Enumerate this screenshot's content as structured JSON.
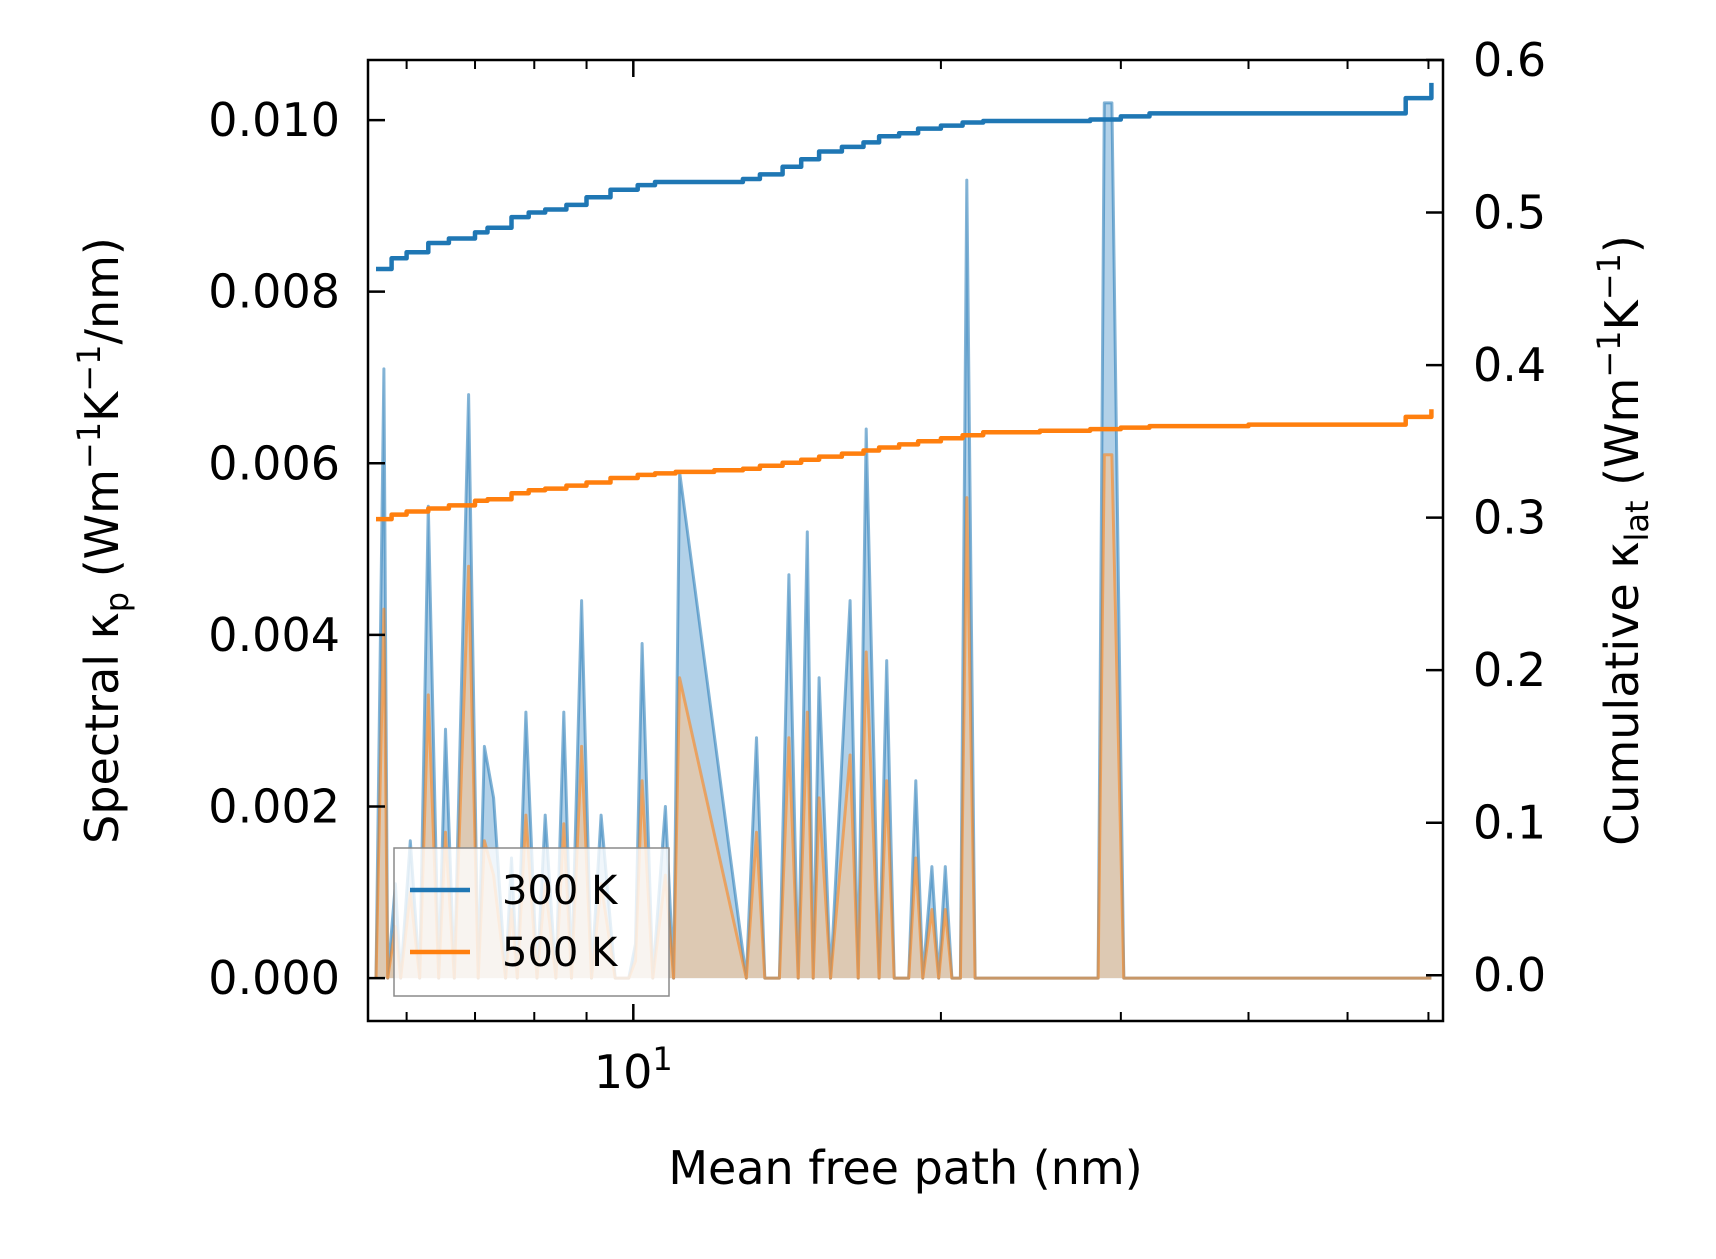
{
  "chart_data": {
    "type": "line",
    "title": "",
    "xlabel": "Mean free path (nm)",
    "x_scale": "log",
    "xlim": [
      5.5,
      62
    ],
    "x_major_ticks": [
      {
        "value": 10,
        "base": "10",
        "exp": "1"
      }
    ],
    "x_minor_ticks": [
      6,
      7,
      8,
      9,
      20,
      30,
      40,
      50,
      60
    ],
    "y_left": {
      "label_parts": {
        "pre": "Spectral κ",
        "sub": "p",
        "mid": " (Wm",
        "sup1": "−1",
        "k": "K",
        "sup2": "−1",
        "post": "/nm)"
      },
      "ylim": [
        -0.0005,
        0.0107
      ],
      "ticks": [
        0.0,
        0.002,
        0.004,
        0.006,
        0.008,
        0.01
      ],
      "tick_labels": [
        "0.000",
        "0.002",
        "0.004",
        "0.006",
        "0.008",
        "0.010"
      ]
    },
    "y_right": {
      "label_parts": {
        "pre": "Cumulative κ",
        "sub": "lat",
        "mid": " (Wm",
        "sup1": "−1",
        "k": "K",
        "sup2": "−1",
        "post": ")"
      },
      "ylim": [
        -0.03,
        0.6
      ],
      "ticks": [
        0.0,
        0.1,
        0.2,
        0.3,
        0.4,
        0.5,
        0.6
      ],
      "tick_labels": [
        "0.0",
        "0.1",
        "0.2",
        "0.3",
        "0.4",
        "0.5",
        "0.6"
      ]
    },
    "legend": {
      "location": "lower-left",
      "entries": [
        "300 K",
        "500 K"
      ]
    },
    "colors": {
      "300K": "#1f77b4",
      "500K": "#ff7f0e",
      "fill_300K": "#89b8dc",
      "fill_500K": "#f5c497"
    },
    "spectral_300K": {
      "x": [
        5.6,
        5.7,
        5.75,
        5.85,
        5.92,
        6.05,
        6.18,
        6.3,
        6.45,
        6.55,
        6.68,
        6.9,
        7.05,
        7.15,
        7.3,
        7.5,
        7.6,
        7.7,
        7.85,
        8.05,
        8.2,
        8.4,
        8.55,
        8.7,
        8.9,
        9.1,
        9.3,
        9.6,
        9.9,
        10.05,
        10.2,
        10.45,
        10.75,
        10.95,
        11.1,
        12.9,
        13.2,
        13.45,
        13.9,
        14.2,
        14.5,
        14.8,
        15.0,
        15.2,
        15.6,
        16.3,
        16.6,
        16.9,
        17.4,
        17.7,
        18.0,
        18.6,
        18.9,
        19.2,
        19.6,
        19.9,
        20.2,
        20.5,
        20.9,
        21.2,
        21.6,
        28.5,
        28.9,
        29.4,
        30.2,
        30.6,
        31.0,
        31.5,
        31.9,
        56.0,
        56.5,
        57.0,
        57.5,
        59.5,
        59.9,
        60.4
      ],
      "y": [
        0,
        0.0071,
        0,
        0.0011,
        0,
        0.0016,
        0,
        0.0055,
        0,
        0.0029,
        0,
        0.0068,
        0,
        0.0027,
        0.0021,
        0,
        0.0014,
        0,
        0.0031,
        0,
        0.0019,
        0,
        0.0031,
        0,
        0.0044,
        0,
        0.0019,
        0,
        0,
        0.0004,
        0.0039,
        0,
        0.002,
        0,
        0.0059,
        0,
        0.0028,
        0,
        0,
        0.0047,
        0,
        0.0052,
        0,
        0.0035,
        0,
        0.0044,
        0,
        0.0064,
        0,
        0.0037,
        0,
        0,
        0.0023,
        0,
        0.0013,
        0,
        0.0013,
        0,
        0,
        0.0093,
        0,
        0,
        0.0102,
        0.0102,
        0,
        0,
        0,
        0,
        0,
        0,
        0,
        0,
        0,
        0,
        0,
        0
      ]
    },
    "spectral_500K": {
      "x": [
        5.6,
        5.7,
        5.75,
        5.85,
        5.92,
        6.05,
        6.18,
        6.3,
        6.45,
        6.55,
        6.68,
        6.9,
        7.05,
        7.15,
        7.3,
        7.5,
        7.6,
        7.7,
        7.85,
        8.05,
        8.2,
        8.4,
        8.55,
        8.7,
        8.9,
        9.1,
        9.3,
        9.6,
        9.9,
        10.05,
        10.2,
        10.45,
        10.75,
        10.95,
        11.1,
        12.9,
        13.2,
        13.45,
        13.9,
        14.2,
        14.5,
        14.8,
        15.0,
        15.2,
        15.6,
        16.3,
        16.6,
        16.9,
        17.4,
        17.7,
        18.0,
        18.6,
        18.9,
        19.2,
        19.6,
        19.9,
        20.2,
        20.5,
        20.9,
        21.2,
        21.6,
        28.5,
        28.9,
        29.4,
        30.2,
        30.6,
        31.0,
        31.5,
        31.9,
        56.0,
        56.5,
        57.0,
        57.5,
        59.5,
        59.9,
        60.4
      ],
      "y": [
        0,
        0.0043,
        0,
        0.0006,
        0,
        0.001,
        0,
        0.0033,
        0,
        0.0017,
        0,
        0.0048,
        0,
        0.0016,
        0.0012,
        0,
        0.0008,
        0,
        0.0019,
        0,
        0.0011,
        0,
        0.0018,
        0,
        0.0027,
        0,
        0.0011,
        0,
        0,
        0.0002,
        0.0023,
        0,
        0.0012,
        0,
        0.0035,
        0,
        0.0017,
        0,
        0,
        0.0028,
        0,
        0.0031,
        0,
        0.0021,
        0,
        0.0026,
        0,
        0.0038,
        0,
        0.0023,
        0,
        0,
        0.0014,
        0,
        0.0008,
        0,
        0.0008,
        0,
        0,
        0.0056,
        0,
        0,
        0.0061,
        0.0061,
        0,
        0,
        0,
        0,
        0,
        0,
        0,
        0,
        0,
        0,
        0,
        0
      ]
    },
    "cumulative_300K": {
      "x": [
        5.6,
        5.72,
        5.8,
        6.0,
        6.3,
        6.6,
        7.0,
        7.2,
        7.6,
        7.9,
        8.2,
        8.6,
        9.0,
        9.5,
        10.1,
        10.5,
        11.0,
        12.0,
        12.8,
        13.3,
        14.0,
        14.6,
        15.2,
        16.0,
        16.8,
        17.4,
        18.2,
        19.0,
        20.0,
        21.0,
        22.0,
        25.0,
        28.0,
        30.0,
        32.0,
        40.0,
        50.0,
        56.0,
        57.0,
        59.5,
        60.4
      ],
      "y": [
        0.463,
        0.463,
        0.47,
        0.474,
        0.48,
        0.483,
        0.487,
        0.49,
        0.497,
        0.5,
        0.502,
        0.505,
        0.51,
        0.515,
        0.518,
        0.52,
        0.52,
        0.52,
        0.522,
        0.525,
        0.53,
        0.535,
        0.54,
        0.543,
        0.546,
        0.55,
        0.552,
        0.555,
        0.557,
        0.559,
        0.56,
        0.56,
        0.561,
        0.563,
        0.565,
        0.565,
        0.565,
        0.565,
        0.575,
        0.575,
        0.585
      ]
    },
    "cumulative_500K": {
      "x": [
        5.6,
        5.72,
        5.8,
        6.0,
        6.3,
        6.6,
        7.0,
        7.2,
        7.6,
        7.9,
        8.2,
        8.6,
        9.0,
        9.5,
        10.1,
        10.5,
        11.0,
        12.0,
        12.8,
        13.3,
        14.0,
        14.6,
        15.2,
        16.0,
        16.8,
        17.4,
        18.2,
        19.0,
        20.0,
        21.0,
        22.0,
        25.0,
        28.0,
        30.0,
        32.0,
        40.0,
        50.0,
        56.0,
        57.0,
        59.5,
        60.4
      ],
      "y": [
        0.299,
        0.299,
        0.302,
        0.304,
        0.306,
        0.308,
        0.311,
        0.312,
        0.316,
        0.318,
        0.319,
        0.321,
        0.323,
        0.326,
        0.328,
        0.329,
        0.33,
        0.331,
        0.332,
        0.334,
        0.336,
        0.338,
        0.34,
        0.342,
        0.344,
        0.346,
        0.348,
        0.35,
        0.352,
        0.354,
        0.356,
        0.357,
        0.358,
        0.359,
        0.36,
        0.361,
        0.361,
        0.361,
        0.366,
        0.366,
        0.371
      ]
    }
  }
}
